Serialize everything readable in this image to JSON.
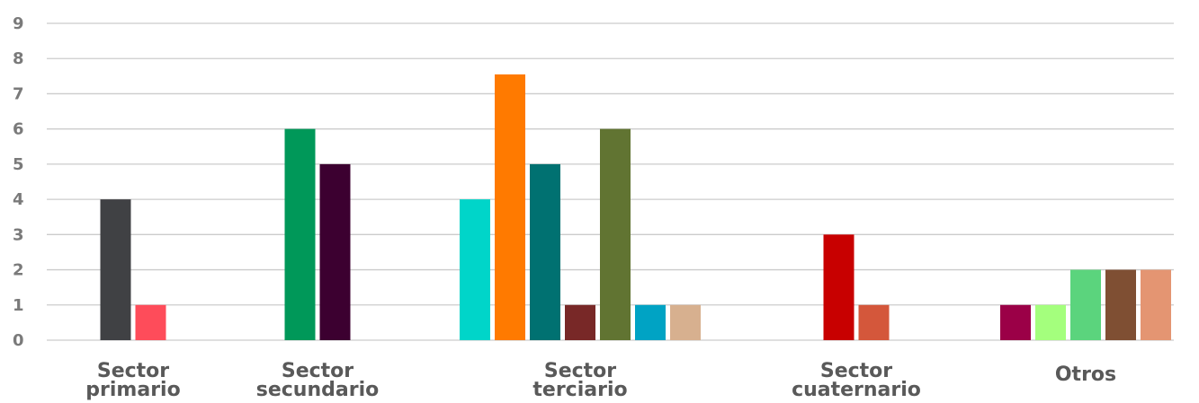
{
  "chart_data": {
    "type": "bar",
    "ylim": [
      0,
      9
    ],
    "yticks": [
      "0",
      "1",
      "2",
      "3",
      "4",
      "5",
      "6",
      "7",
      "8",
      "9"
    ],
    "grid": true,
    "groups": [
      {
        "label_lines": [
          "Sector",
          "primario"
        ],
        "bars": [
          {
            "value": 4,
            "color": "#404144"
          },
          {
            "value": 1,
            "color": "#fe4c5a"
          }
        ]
      },
      {
        "label_lines": [
          "Sector",
          "secundario"
        ],
        "bars": [
          {
            "value": 6,
            "color": "#009859"
          },
          {
            "value": 5,
            "color": "#3c0030"
          }
        ]
      },
      {
        "label_lines": [
          "Sector",
          "terciario"
        ],
        "bars": [
          {
            "value": 4,
            "color": "#00d5c9"
          },
          {
            "value": 7.55,
            "color": "#ff7a00"
          },
          {
            "value": 5,
            "color": "#007171"
          },
          {
            "value": 1,
            "color": "#782827"
          },
          {
            "value": 6,
            "color": "#617432"
          },
          {
            "value": 1,
            "color": "#00a3c4"
          },
          {
            "value": 1,
            "color": "#d7b08f"
          }
        ]
      },
      {
        "label_lines": [
          "Sector",
          "cuaternario"
        ],
        "bars": [
          {
            "value": 3,
            "color": "#c80000"
          },
          {
            "value": 1,
            "color": "#d4573b"
          }
        ]
      },
      {
        "label_lines": [
          "Otros"
        ],
        "bars": [
          {
            "value": 1,
            "color": "#9b0047"
          },
          {
            "value": 1,
            "color": "#a4ff7d"
          },
          {
            "value": 2,
            "color": "#5bd47d"
          },
          {
            "value": 2,
            "color": "#7f4f33"
          },
          {
            "value": 2,
            "color": "#e49572"
          }
        ]
      }
    ]
  }
}
